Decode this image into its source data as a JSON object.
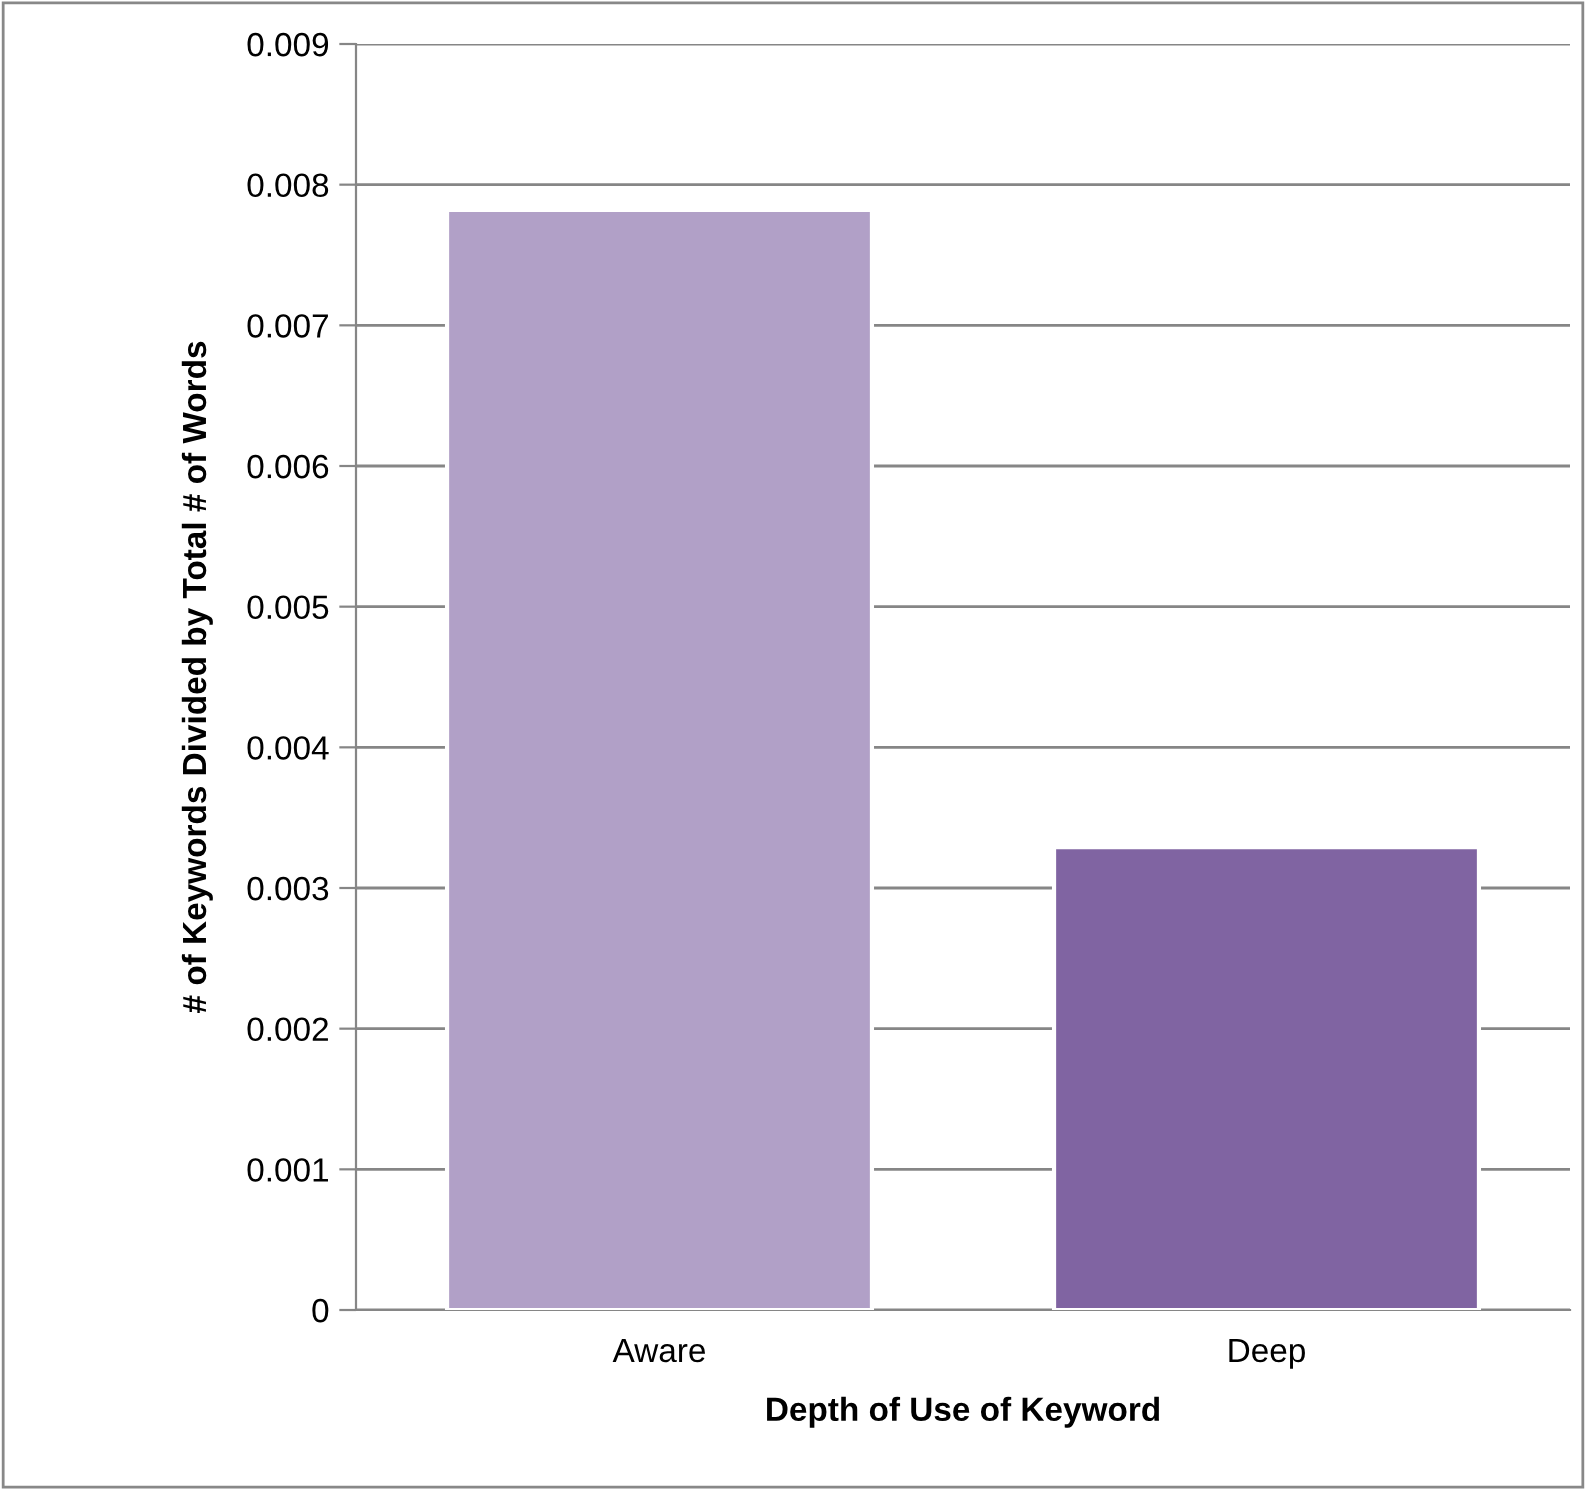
{
  "chart_data": {
    "type": "bar",
    "xlabel": "Depth of Use of Keyword",
    "ylabel": "# of Keywords Divided by Total # of Words",
    "categories": [
      "Aware",
      "Deep"
    ],
    "values": [
      0.00782,
      0.00329
    ],
    "colors": [
      "#b1a0c7",
      "#8064a2"
    ],
    "ylim": [
      0,
      0.009
    ],
    "yticks": [
      {
        "value": 0,
        "label": "0"
      },
      0.001,
      0.002,
      0.003,
      0.004,
      0.005,
      0.006,
      0.007,
      0.008,
      0.009
    ],
    "grid": "y",
    "legend": false
  }
}
